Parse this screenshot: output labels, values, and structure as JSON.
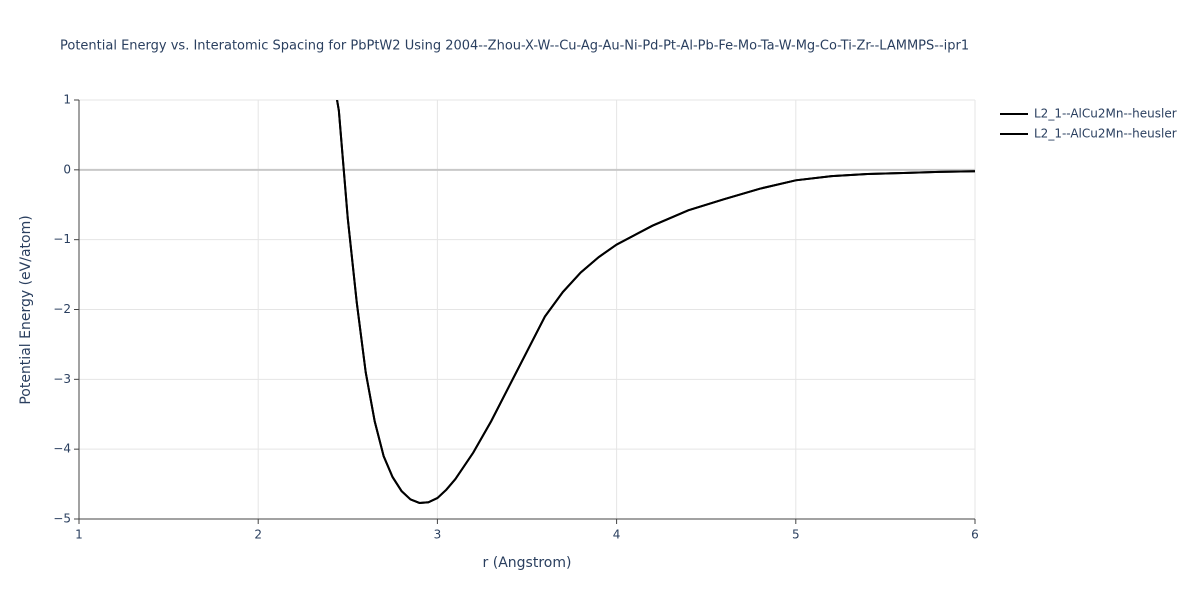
{
  "chart_data": {
    "type": "line",
    "title": "Potential Energy vs. Interatomic Spacing for PbPtW2 Using 2004--Zhou-X-W--Cu-Ag-Au-Ni-Pd-Pt-Al-Pb-Fe-Mo-Ta-W-Mg-Co-Ti-Zr--LAMMPS--ipr1",
    "x_label": "r (Angstrom)",
    "y_label": "Potential Energy (eV/atom)",
    "x": [
      2.44,
      2.45,
      2.5,
      2.55,
      2.6,
      2.65,
      2.7,
      2.75,
      2.8,
      2.85,
      2.9,
      2.95,
      3.0,
      3.05,
      3.1,
      3.2,
      3.3,
      3.4,
      3.5,
      3.6,
      3.7,
      3.8,
      3.9,
      4.0,
      4.2,
      4.4,
      4.6,
      4.8,
      5.0,
      5.2,
      5.4,
      5.6,
      5.8,
      6.0
    ],
    "series": [
      {
        "name": "L2_1--AlCu2Mn--heusler",
        "color": "#000000",
        "values": [
          1.0,
          0.85,
          -0.7,
          -1.9,
          -2.9,
          -3.6,
          -4.1,
          -4.4,
          -4.6,
          -4.72,
          -4.77,
          -4.76,
          -4.7,
          -4.58,
          -4.43,
          -4.05,
          -3.6,
          -3.1,
          -2.6,
          -2.1,
          -1.75,
          -1.47,
          -1.25,
          -1.07,
          -0.8,
          -0.58,
          -0.42,
          -0.27,
          -0.15,
          -0.09,
          -0.06,
          -0.045,
          -0.03,
          -0.02
        ]
      },
      {
        "name": "L2_1--AlCu2Mn--heusler",
        "color": "#000000",
        "values": [
          1.0,
          0.85,
          -0.7,
          -1.9,
          -2.9,
          -3.6,
          -4.1,
          -4.4,
          -4.6,
          -4.72,
          -4.77,
          -4.76,
          -4.7,
          -4.58,
          -4.43,
          -4.05,
          -3.6,
          -3.1,
          -2.6,
          -2.1,
          -1.75,
          -1.47,
          -1.25,
          -1.07,
          -0.8,
          -0.58,
          -0.42,
          -0.27,
          -0.15,
          -0.09,
          -0.06,
          -0.045,
          -0.03,
          -0.02
        ]
      }
    ],
    "xlim": [
      1,
      6
    ],
    "xticks": [
      1,
      2,
      3,
      4,
      5,
      6
    ],
    "ylim": [
      -5,
      1
    ],
    "yticks": [
      {
        "value": -5,
        "label": "−5"
      },
      {
        "value": -4,
        "label": "−4"
      },
      {
        "value": -3,
        "label": "−3"
      },
      {
        "value": -2,
        "label": "−2"
      },
      {
        "value": -1,
        "label": "−1"
      },
      0,
      1
    ],
    "grid": true,
    "zeroline": true,
    "legend": "right"
  }
}
